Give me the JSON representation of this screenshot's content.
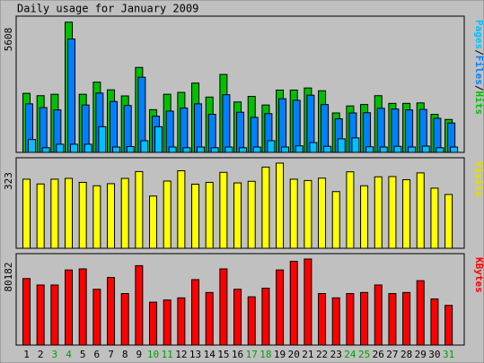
{
  "chart_data": {
    "type": "bar",
    "title": "Daily usage for January 2009",
    "categories": [
      "1",
      "2",
      "3",
      "4",
      "5",
      "6",
      "7",
      "8",
      "9",
      "10",
      "11",
      "12",
      "13",
      "14",
      "15",
      "16",
      "17",
      "18",
      "19",
      "20",
      "21",
      "22",
      "23",
      "24",
      "25",
      "26",
      "27",
      "28",
      "29",
      "30",
      "31"
    ],
    "weekend_days": [
      "3",
      "4",
      "10",
      "11",
      "17",
      "18",
      "24",
      "25",
      "31"
    ],
    "panels": [
      {
        "id": "pages-files-hits",
        "ymax_label": "5608",
        "ymax": 5608,
        "legend": [
          {
            "text": "Pages",
            "color": "#00c0ff"
          },
          {
            "text": "/",
            "color": "#000000"
          },
          {
            "text": "Files",
            "color": "#0080ff"
          },
          {
            "text": "/",
            "color": "#000000"
          },
          {
            "text": "Hits",
            "color": "#00c000"
          }
        ],
        "series": [
          {
            "name": "Hits",
            "color": "#00c000",
            "values": [
              2530,
              2430,
              2490,
              5580,
              2490,
              3010,
              2680,
              2420,
              3640,
              1830,
              2490,
              2570,
              2970,
              2370,
              3340,
              2160,
              2400,
              2030,
              2670,
              2670,
              2760,
              2640,
              1690,
              1990,
              2050,
              2430,
              2100,
              2100,
              2120,
              1630,
              1410
            ]
          },
          {
            "name": "Files",
            "color": "#0080ff",
            "values": [
              2080,
              1920,
              1820,
              4860,
              2030,
              2540,
              2180,
              2010,
              3220,
              1550,
              1770,
              1900,
              2080,
              1630,
              2470,
              1720,
              1500,
              1660,
              2300,
              2230,
              2450,
              2050,
              1440,
              1690,
              1700,
              1890,
              1860,
              1820,
              1840,
              1460,
              1260
            ]
          },
          {
            "name": "Pages",
            "color": "#00c0ff",
            "values": [
              550,
              200,
              350,
              350,
              350,
              1100,
              230,
              250,
              500,
              1100,
              230,
              200,
              230,
              200,
              230,
              200,
              230,
              500,
              230,
              280,
              420,
              260,
              580,
              620,
              240,
              230,
              260,
              230,
              270,
              200,
              230
            ]
          }
        ]
      },
      {
        "id": "visits",
        "ymax_label": "323",
        "ymax": 323,
        "legend": [
          {
            "text": "Visits",
            "color": "#e0e000"
          }
        ],
        "series": [
          {
            "name": "Visits",
            "color": "#ffff00",
            "values": [
              262,
              244,
              262,
              265,
              250,
              237,
              245,
              265,
              291,
              198,
              255,
              294,
              243,
              250,
              288,
              248,
              254,
              308,
              323,
              262,
              257,
              266,
              215,
              290,
              237,
              271,
              272,
              260,
              286,
              228,
              204
            ]
          }
        ]
      },
      {
        "id": "kbytes",
        "ymax_label": "80182",
        "ymax": 80182,
        "legend": [
          {
            "text": "KBytes",
            "color": "#ff0000"
          }
        ],
        "series": [
          {
            "name": "KBytes",
            "color": "#ff0000",
            "values": [
              62000,
              56000,
              56000,
              70000,
              71000,
              52000,
              63000,
              48000,
              74000,
              40000,
              42000,
              44000,
              61000,
              49000,
              71000,
              52000,
              45000,
              53000,
              70000,
              78000,
              80182,
              48000,
              44000,
              48000,
              49000,
              56000,
              48000,
              49000,
              60000,
              43000,
              37000
            ]
          }
        ]
      }
    ]
  }
}
